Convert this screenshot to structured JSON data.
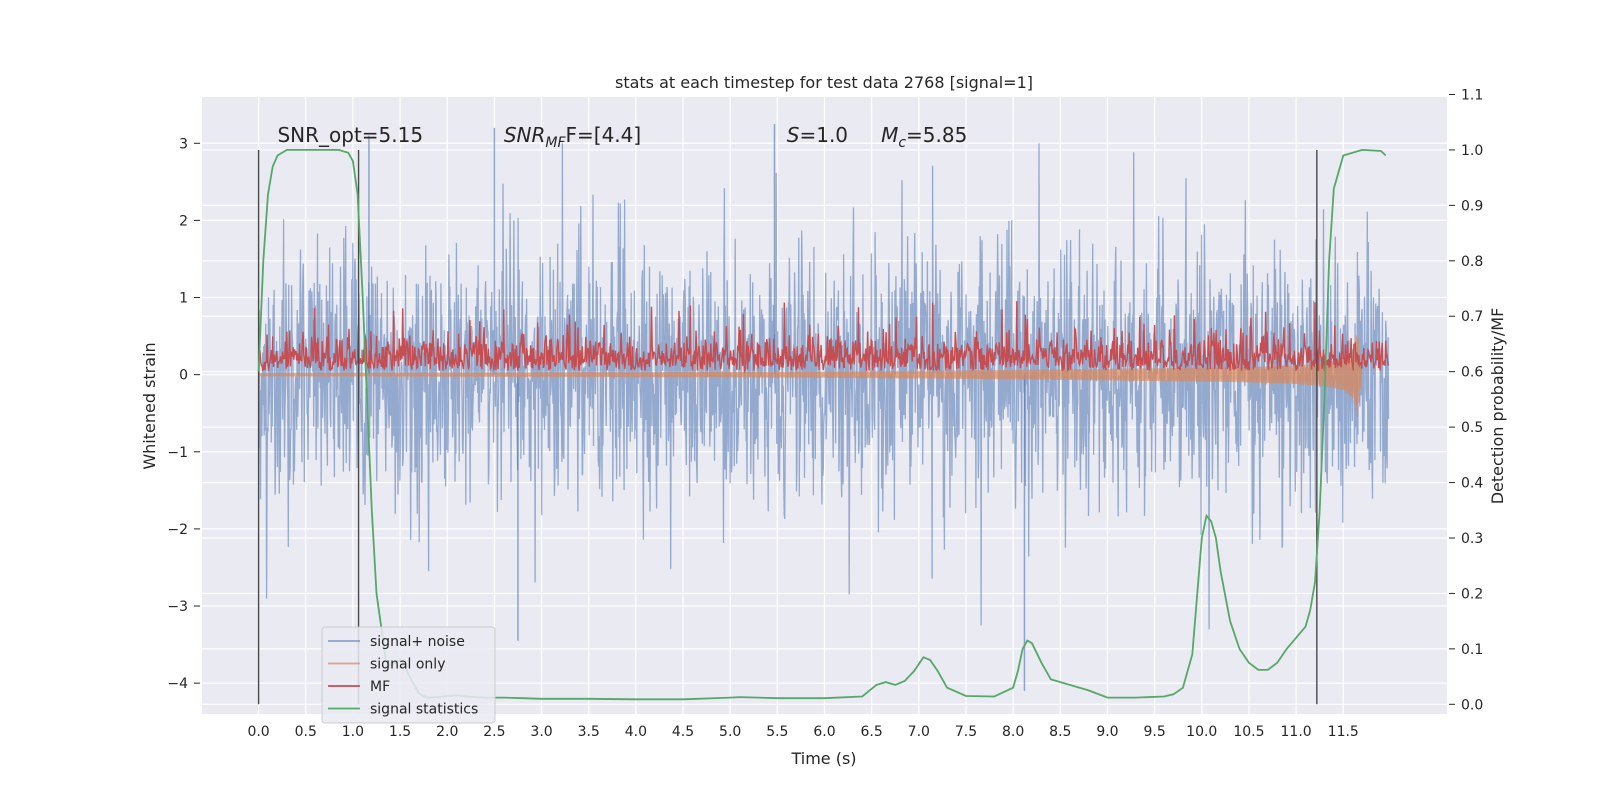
{
  "chart_data": {
    "type": "line",
    "title": "stats at each timestep for test data 2768 [signal=1]",
    "xlabel": "Time (s)",
    "ylabel": "Whitened strain",
    "y2label": "Detection probability/MF",
    "xlim": [
      -0.6,
      12.6
    ],
    "ylim": [
      -4.4,
      3.6
    ],
    "y2lim": [
      -0.0175,
      1.0955
    ],
    "x_ticks": [
      "0.0",
      "0.5",
      "1.0",
      "1.5",
      "2.0",
      "2.5",
      "3.0",
      "3.5",
      "4.0",
      "4.5",
      "5.0",
      "5.5",
      "6.0",
      "6.5",
      "7.0",
      "7.5",
      "8.0",
      "8.5",
      "9.0",
      "9.5",
      "10.0",
      "10.5",
      "11.0",
      "11.5"
    ],
    "y_ticks": [
      "−4",
      "−3",
      "−2",
      "−1",
      "0",
      "1",
      "2",
      "3"
    ],
    "y2_ticks": [
      "0.0",
      "0.1",
      "0.2",
      "0.3",
      "0.4",
      "0.5",
      "0.6",
      "0.7",
      "0.8",
      "0.9",
      "1.0",
      "1.1"
    ],
    "grid": true,
    "legend_position": "bottom-left",
    "annotations": [
      {
        "text": "SNR_opt=5.15",
        "x": 0.2
      },
      {
        "text": "SNR",
        "sub": "MF",
        "italic": true,
        "tail": "F=[4.4]",
        "x": 2.6
      },
      {
        "text": "S",
        "italic": true,
        "tail": "=1.0",
        "x": 5.6
      },
      {
        "text": "M",
        "sub": "c",
        "italic": true,
        "tail": "=5.85",
        "x": 6.6
      }
    ],
    "vlines": [
      0.0,
      1.06,
      11.22
    ],
    "series": [
      {
        "name": "signal+ noise",
        "color": "#4c72b0",
        "axis": "left",
        "style": "noise",
        "t_range": [
          0.0,
          11.98
        ],
        "envelope_sigma": 0.8,
        "spike_max": [
          3.25,
          -4.1
        ],
        "peak_points": [
          {
            "x": 1.17,
            "y": 3.1
          },
          {
            "x": 2.5,
            "y": 3.2
          },
          {
            "x": 5.47,
            "y": 3.25
          },
          {
            "x": 8.12,
            "y": -4.1
          },
          {
            "x": 2.75,
            "y": -3.45
          }
        ]
      },
      {
        "name": "signal only",
        "color": "#dd8452",
        "axis": "left",
        "style": "chirp",
        "x": [
          0.0,
          2.0,
          4.0,
          6.0,
          7.0,
          8.0,
          9.0,
          10.0,
          10.5,
          11.0,
          11.3,
          11.5,
          11.6,
          11.65,
          11.7
        ],
        "amplitude": [
          0.02,
          0.025,
          0.03,
          0.04,
          0.05,
          0.06,
          0.075,
          0.09,
          0.1,
          0.12,
          0.15,
          0.2,
          0.3,
          0.55,
          0.0
        ]
      },
      {
        "name": "MF",
        "color": "#c44e52",
        "axis": "left",
        "style": "mf",
        "t_range": [
          0.0,
          11.98
        ],
        "base": 0.0,
        "typical_top": 0.55,
        "max_top": 0.97
      },
      {
        "name": "signal statistics",
        "color": "#55a868",
        "axis": "right",
        "style": "line",
        "x": [
          0.0,
          0.05,
          0.1,
          0.15,
          0.2,
          0.3,
          0.5,
          0.7,
          0.85,
          0.95,
          1.0,
          1.05,
          1.1,
          1.15,
          1.2,
          1.25,
          1.3,
          1.35,
          1.4,
          1.45,
          1.5,
          1.55,
          1.6,
          1.65,
          1.7,
          1.75,
          1.8,
          1.9,
          2.0,
          2.1,
          2.2,
          2.4,
          2.6,
          2.8,
          3.0,
          3.5,
          4.0,
          4.5,
          5.0,
          5.1,
          5.5,
          6.0,
          6.4,
          6.55,
          6.65,
          6.75,
          6.85,
          6.95,
          7.05,
          7.12,
          7.2,
          7.3,
          7.5,
          7.8,
          8.0,
          8.05,
          8.1,
          8.15,
          8.2,
          8.3,
          8.4,
          8.6,
          8.8,
          9.0,
          9.3,
          9.6,
          9.7,
          9.8,
          9.9,
          10.0,
          10.05,
          10.1,
          10.15,
          10.2,
          10.3,
          10.4,
          10.5,
          10.6,
          10.7,
          10.8,
          10.9,
          11.0,
          11.1,
          11.15,
          11.2,
          11.25,
          11.3,
          11.35,
          11.4,
          11.5,
          11.7,
          11.9,
          11.95
        ],
        "y": [
          0.6,
          0.8,
          0.92,
          0.97,
          0.99,
          1.0,
          1.0,
          1.0,
          1.0,
          0.995,
          0.98,
          0.92,
          0.75,
          0.55,
          0.35,
          0.2,
          0.14,
          0.08,
          0.07,
          0.075,
          0.08,
          0.07,
          0.05,
          0.035,
          0.02,
          0.015,
          0.012,
          0.013,
          0.015,
          0.016,
          0.014,
          0.012,
          0.012,
          0.011,
          0.01,
          0.01,
          0.009,
          0.009,
          0.012,
          0.013,
          0.011,
          0.011,
          0.014,
          0.035,
          0.04,
          0.035,
          0.042,
          0.06,
          0.085,
          0.08,
          0.06,
          0.03,
          0.015,
          0.014,
          0.03,
          0.06,
          0.1,
          0.115,
          0.11,
          0.075,
          0.045,
          0.035,
          0.025,
          0.012,
          0.012,
          0.014,
          0.018,
          0.03,
          0.09,
          0.3,
          0.34,
          0.33,
          0.3,
          0.24,
          0.15,
          0.1,
          0.075,
          0.062,
          0.062,
          0.075,
          0.1,
          0.12,
          0.14,
          0.17,
          0.22,
          0.35,
          0.55,
          0.8,
          0.93,
          0.99,
          1.0,
          0.998,
          0.99
        ]
      }
    ]
  }
}
